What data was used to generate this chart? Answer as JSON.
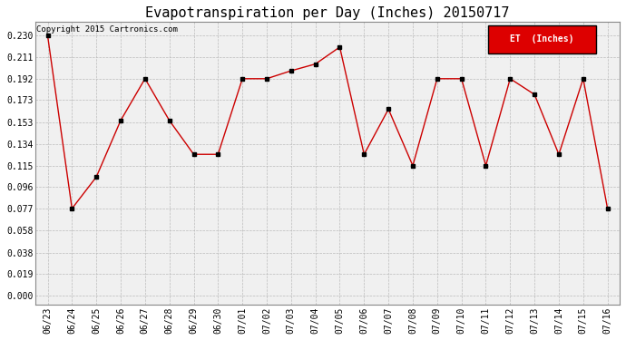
{
  "title": "Evapotranspiration per Day (Inches) 20150717",
  "copyright": "Copyright 2015 Cartronics.com",
  "legend_label": "ET  (Inches)",
  "legend_bg": "#dd0000",
  "legend_text_color": "#ffffff",
  "line_color": "#cc0000",
  "marker_color": "#000000",
  "plot_bg": "#f0f0f0",
  "fig_bg": "#ffffff",
  "dates": [
    "06/23",
    "06/24",
    "06/25",
    "06/26",
    "06/27",
    "06/28",
    "06/29",
    "06/30",
    "07/01",
    "07/02",
    "07/03",
    "07/04",
    "07/05",
    "07/06",
    "07/07",
    "07/08",
    "07/09",
    "07/10",
    "07/11",
    "07/12",
    "07/13",
    "07/14",
    "07/15",
    "07/16"
  ],
  "values": [
    0.23,
    0.077,
    0.105,
    0.155,
    0.192,
    0.155,
    0.125,
    0.125,
    0.192,
    0.192,
    0.199,
    0.205,
    0.22,
    0.125,
    0.165,
    0.115,
    0.192,
    0.192,
    0.115,
    0.192,
    0.178,
    0.125,
    0.192,
    0.077
  ],
  "yticks": [
    0.0,
    0.019,
    0.038,
    0.058,
    0.077,
    0.096,
    0.115,
    0.134,
    0.153,
    0.173,
    0.192,
    0.211,
    0.23
  ],
  "ylim_min": -0.008,
  "ylim_max": 0.242,
  "title_fontsize": 11,
  "tick_fontsize": 7,
  "copyright_fontsize": 6.5
}
